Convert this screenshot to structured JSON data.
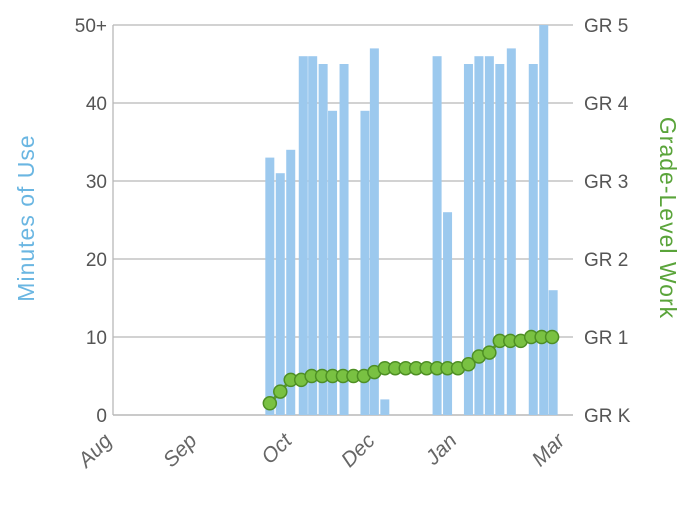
{
  "chart_data": {
    "type": "bar+line",
    "ylabel_left": "Minutes of Use",
    "ylabel_right": "Grade-Level Work",
    "y_left_ticks": [
      "0",
      "10",
      "20",
      "30",
      "40",
      "50+"
    ],
    "y_left_range": [
      0,
      50
    ],
    "y_right_ticks": [
      "GR K",
      "GR 1",
      "GR 2",
      "GR 3",
      "GR 4",
      "GR 5"
    ],
    "x_tick_labels": [
      "Aug",
      "Sep",
      "Oct",
      "Dec",
      "Jan",
      "Mar"
    ],
    "grid": true,
    "colors": {
      "bars": "#9cc9ee",
      "line": "#5b9a2f",
      "marker_fill": "#79c142",
      "marker_stroke": "#4e8f24",
      "grid": "#b8b8b8",
      "left_title": "#6ab6e2",
      "right_title": "#5aa43a"
    },
    "series": [
      {
        "kind": "bar",
        "axis": "left",
        "values": [
          {
            "week": 15,
            "value": 33
          },
          {
            "week": 16,
            "value": 31
          },
          {
            "week": 17,
            "value": 34
          },
          {
            "week": 18.2,
            "value": 46
          },
          {
            "week": 19.1,
            "value": 46
          },
          {
            "week": 20.1,
            "value": 45
          },
          {
            "week": 21,
            "value": 39
          },
          {
            "week": 22.1,
            "value": 45
          },
          {
            "week": 24.1,
            "value": 39
          },
          {
            "week": 25,
            "value": 47
          },
          {
            "week": 26,
            "value": 2
          },
          {
            "week": 31,
            "value": 46
          },
          {
            "week": 32,
            "value": 26
          },
          {
            "week": 34,
            "value": 45
          },
          {
            "week": 35,
            "value": 46
          },
          {
            "week": 36,
            "value": 46
          },
          {
            "week": 37,
            "value": 45
          },
          {
            "week": 38.1,
            "value": 47
          },
          {
            "week": 40.2,
            "value": 45
          },
          {
            "week": 41.2,
            "value": 50
          },
          {
            "week": 42.1,
            "value": 16
          }
        ]
      },
      {
        "kind": "line",
        "axis": "right",
        "values": [
          {
            "week": 15,
            "value": 0.15
          },
          {
            "week": 16,
            "value": 0.3
          },
          {
            "week": 17,
            "value": 0.45
          },
          {
            "week": 18,
            "value": 0.45
          },
          {
            "week": 19,
            "value": 0.5
          },
          {
            "week": 20,
            "value": 0.5
          },
          {
            "week": 21,
            "value": 0.5
          },
          {
            "week": 22,
            "value": 0.5
          },
          {
            "week": 23,
            "value": 0.5
          },
          {
            "week": 24,
            "value": 0.5
          },
          {
            "week": 25,
            "value": 0.55
          },
          {
            "week": 26,
            "value": 0.6
          },
          {
            "week": 27,
            "value": 0.6
          },
          {
            "week": 28,
            "value": 0.6
          },
          {
            "week": 29,
            "value": 0.6
          },
          {
            "week": 30,
            "value": 0.6
          },
          {
            "week": 31,
            "value": 0.6
          },
          {
            "week": 32,
            "value": 0.6
          },
          {
            "week": 33,
            "value": 0.6
          },
          {
            "week": 34,
            "value": 0.65
          },
          {
            "week": 35,
            "value": 0.75
          },
          {
            "week": 36,
            "value": 0.8
          },
          {
            "week": 37,
            "value": 0.95
          },
          {
            "week": 38,
            "value": 0.95
          },
          {
            "week": 39,
            "value": 0.95
          },
          {
            "week": 40,
            "value": 1.0
          },
          {
            "week": 41,
            "value": 1.0
          },
          {
            "week": 42,
            "value": 1.0
          }
        ]
      }
    ]
  }
}
